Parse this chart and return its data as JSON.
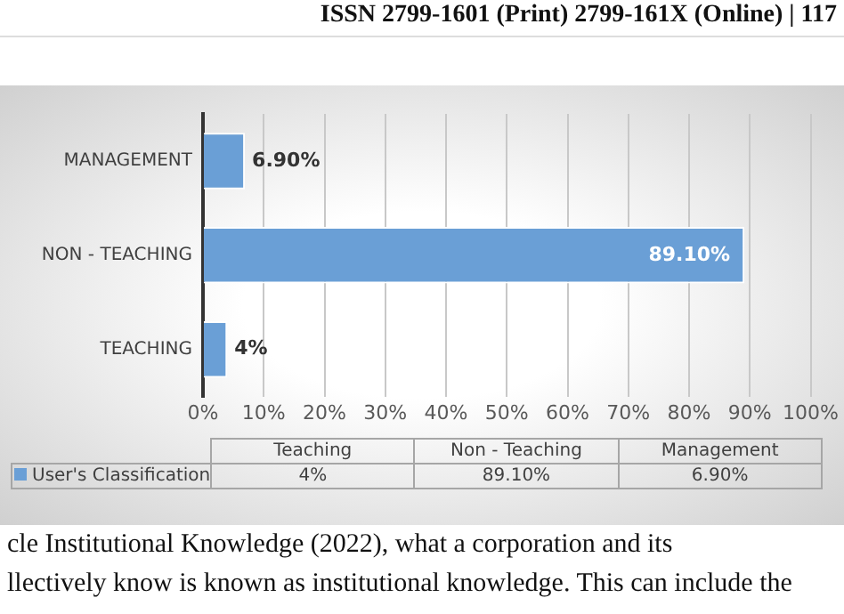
{
  "chart_data": {
    "type": "bar",
    "orientation": "horizontal",
    "categories": [
      "MANAGEMENT",
      "NON - TEACHING",
      "TEACHING"
    ],
    "series": [
      {
        "name": "User's Classification",
        "color": "#6a9fd6",
        "values": [
          6.9,
          89.1,
          4
        ],
        "value_labels": [
          "6.90%",
          "89.10%",
          "4%"
        ]
      }
    ],
    "xlim": [
      0,
      100
    ],
    "xticks": [
      {
        "value": 0,
        "label": "0%"
      },
      {
        "value": 10,
        "label": "10%"
      },
      {
        "value": 20,
        "label": "20%"
      },
      {
        "value": 30,
        "label": "30%"
      },
      {
        "value": 40,
        "label": "40%"
      },
      {
        "value": 50,
        "label": "50%"
      },
      {
        "value": 60,
        "label": "60%"
      },
      {
        "value": 70,
        "label": "70%"
      },
      {
        "value": 80,
        "label": "80%"
      },
      {
        "value": 90,
        "label": "90%"
      },
      {
        "value": 100,
        "label": "100%"
      }
    ],
    "grid": "x",
    "annotations": [
      "ISSN 2799-1601 (Print) 2799-161X (Online) | 117",
      "Teaching",
      "Non - Teaching",
      "Management",
      "cle Institutional Knowledge (2022), what a corporation and its",
      "llectively know is known as institutional knowledge. This can include the"
    ]
  }
}
